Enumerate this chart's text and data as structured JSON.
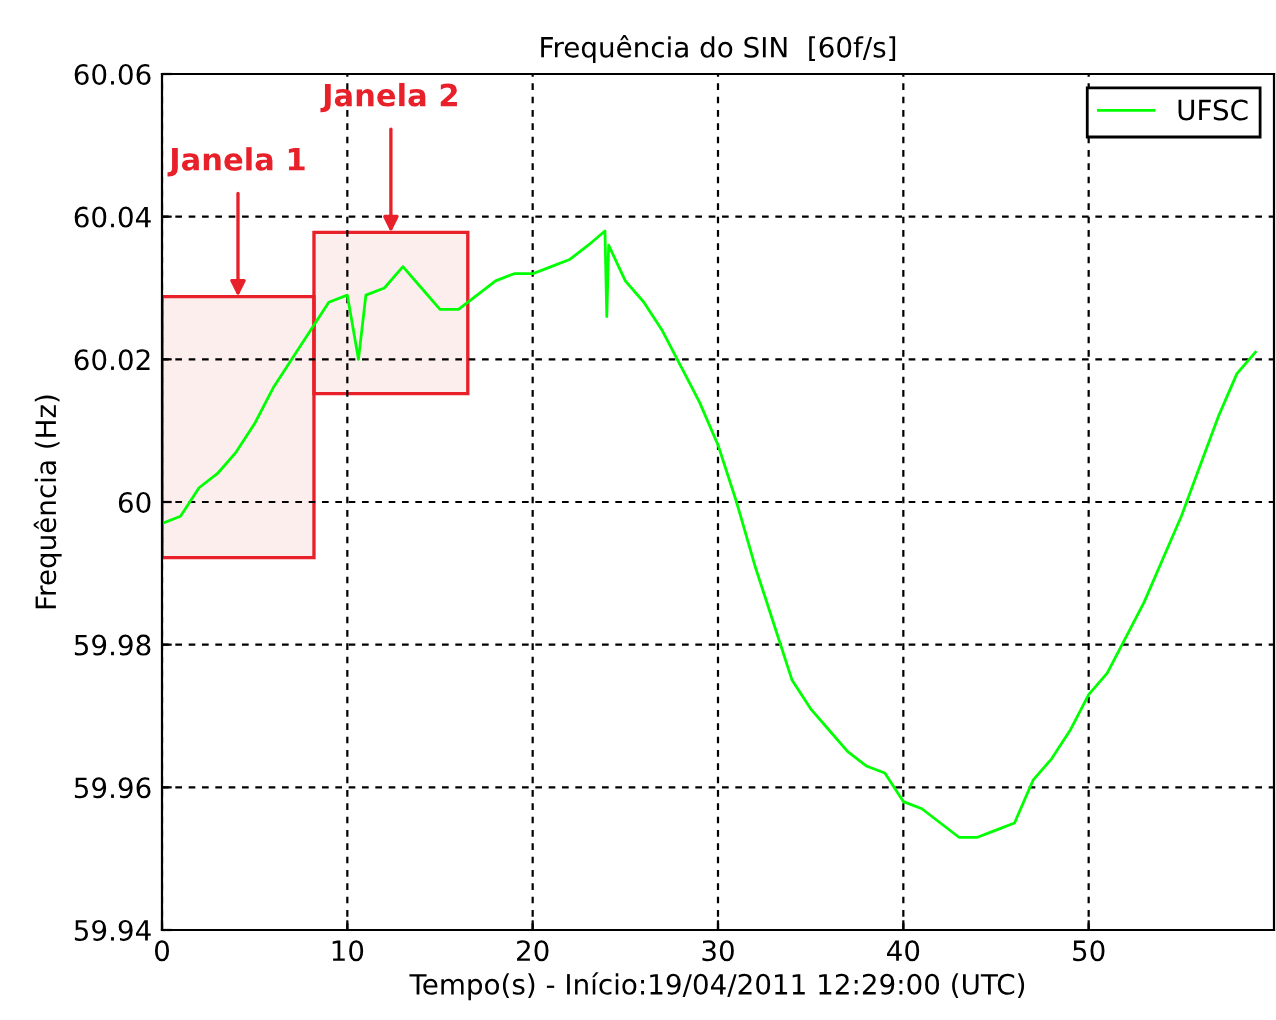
{
  "chart_data": {
    "type": "line",
    "title": "Frequência do SIN  [60f/s]",
    "xlabel": "Tempo(s) - Início:19/04/2011 12:29:00 (UTC)",
    "ylabel": "Frequência (Hz)",
    "series": [
      {
        "name": "UFSC",
        "color": "#00ff00",
        "x": [
          0,
          1,
          2,
          3,
          4,
          5,
          6,
          7,
          8,
          9,
          10,
          10.6,
          11,
          12,
          13,
          14,
          15,
          16,
          17,
          18,
          19,
          20,
          21,
          22,
          23,
          23.9,
          24,
          24.1,
          25,
          26,
          27,
          28,
          29,
          30,
          31,
          32,
          33,
          34,
          35,
          36,
          37,
          38,
          39,
          40,
          41,
          42,
          43,
          44,
          45,
          46,
          47,
          48,
          49,
          50,
          51,
          52,
          53,
          54,
          55,
          56,
          57,
          58,
          59
        ],
        "values": [
          59.997,
          59.998,
          60.002,
          60.004,
          60.007,
          60.011,
          60.016,
          60.02,
          60.024,
          60.028,
          60.029,
          60.02,
          60.029,
          60.03,
          60.033,
          60.03,
          60.027,
          60.027,
          60.029,
          60.031,
          60.032,
          60.032,
          60.033,
          60.034,
          60.036,
          60.038,
          60.026,
          60.036,
          60.031,
          60.028,
          60.024,
          60.019,
          60.014,
          60.008,
          60.0,
          59.991,
          59.983,
          59.975,
          59.971,
          59.968,
          59.965,
          59.963,
          59.962,
          59.958,
          59.957,
          59.955,
          59.953,
          59.953,
          59.954,
          59.955,
          59.961,
          59.964,
          59.968,
          59.973,
          59.976,
          59.981,
          59.986,
          59.992,
          59.998,
          60.005,
          60.012,
          60.018,
          60.021
        ]
      }
    ],
    "xlim": [
      0,
      60
    ],
    "xticks": [
      0,
      10,
      20,
      30,
      40,
      50
    ],
    "ylim": [
      59.94,
      60.06
    ],
    "yticks": [
      59.94,
      59.96,
      59.98,
      60,
      60.02,
      60.04,
      60.06
    ],
    "grid": true,
    "legend": "top right",
    "line_style": "solid",
    "marker": "none",
    "bands": [
      {
        "axis": "x",
        "from": 0,
        "to": 8.2,
        "label": "Janela 1",
        "color": "#e8202a"
      },
      {
        "axis": "x",
        "from": 8.2,
        "to": 16.5,
        "label": "Janela 2",
        "color": "#e8202a"
      }
    ]
  }
}
